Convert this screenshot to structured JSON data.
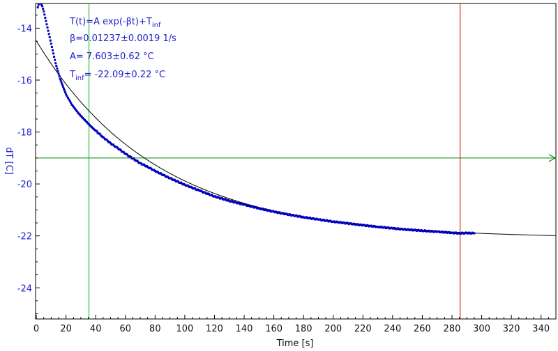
{
  "chart_data": {
    "type": "scatter",
    "xlabel": "Time [s]",
    "ylabel": "dT [C]",
    "xlim": [
      -0.5,
      350
    ],
    "ylim": [
      -25.2,
      -13.05
    ],
    "x_ticks": [
      0,
      20,
      40,
      60,
      80,
      100,
      120,
      140,
      160,
      180,
      200,
      220,
      240,
      260,
      280,
      300,
      320,
      340
    ],
    "y_ticks": [
      -24,
      -22,
      -20,
      -18,
      -16,
      -14
    ],
    "grid": false,
    "fit": {
      "formula": "T(t)=A exp(-βt)+T",
      "formula_sub": "inf",
      "beta_text": "β=0.01237±0.0019 1/s",
      "a_text": "A= 7.603±0.62 °C",
      "tinf_prefix": "T",
      "tinf_sub": "inf",
      "tinf_rest": "= -22.09±0.22 °C",
      "A": 7.603,
      "beta": 0.01237,
      "T_inf": -22.09
    },
    "fit_line": {
      "x_start": 0,
      "x_end": 350,
      "color": "#000000"
    },
    "marker_lines": [
      {
        "orientation": "vertical",
        "x": 35.5,
        "color": "#00bb00"
      },
      {
        "orientation": "vertical",
        "x": 285.5,
        "color": "#cc0000"
      },
      {
        "orientation": "horizontal",
        "y": -19.0,
        "color": "#008800"
      }
    ],
    "series": [
      {
        "color": "#0000bb",
        "x": [
          1,
          2,
          3,
          4,
          5,
          6,
          7,
          8,
          9,
          10,
          11,
          12,
          13,
          14,
          15,
          16,
          17,
          18,
          19,
          20,
          22,
          24,
          26,
          28,
          30,
          32,
          34,
          36,
          38,
          40,
          45,
          50,
          55,
          60,
          65,
          70,
          75,
          80,
          90,
          100,
          110,
          120,
          130,
          140,
          150,
          160,
          170,
          180,
          190,
          200,
          210,
          220,
          230,
          240,
          250,
          260,
          270,
          280,
          285,
          290,
          295
        ],
        "y": [
          -13.2,
          -13.0,
          -13.05,
          -13.15,
          -13.35,
          -13.6,
          -13.85,
          -14.1,
          -14.35,
          -14.6,
          -14.85,
          -15.1,
          -15.35,
          -15.55,
          -15.75,
          -15.95,
          -16.1,
          -16.25,
          -16.4,
          -16.55,
          -16.75,
          -16.95,
          -17.1,
          -17.25,
          -17.38,
          -17.5,
          -17.62,
          -17.74,
          -17.85,
          -17.95,
          -18.2,
          -18.43,
          -18.63,
          -18.84,
          -19.02,
          -19.2,
          -19.34,
          -19.5,
          -19.78,
          -20.03,
          -20.26,
          -20.48,
          -20.65,
          -20.8,
          -20.94,
          -21.07,
          -21.18,
          -21.28,
          -21.37,
          -21.45,
          -21.52,
          -21.59,
          -21.65,
          -21.71,
          -21.76,
          -21.8,
          -21.84,
          -21.88,
          -21.9,
          -21.89,
          -21.9
        ]
      }
    ]
  }
}
